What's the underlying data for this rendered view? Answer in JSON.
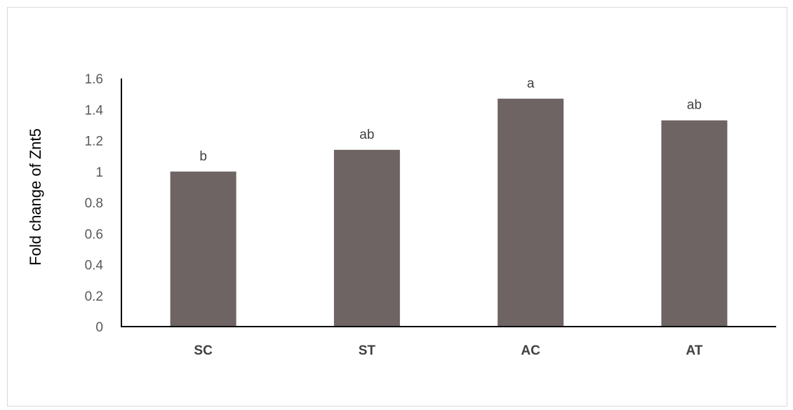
{
  "chart_data": {
    "type": "bar",
    "title": "",
    "xlabel": "",
    "ylabel": "Fold change of Znt5",
    "categories": [
      "SC",
      "ST",
      "AC",
      "AT"
    ],
    "values": [
      1.0,
      1.14,
      1.47,
      1.33
    ],
    "bar_labels": [
      "b",
      "ab",
      "a",
      "ab"
    ],
    "ylim": [
      0,
      1.6
    ],
    "yticks": [
      0,
      0.2,
      0.4,
      0.6,
      0.8,
      1,
      1.2,
      1.4,
      1.6
    ],
    "ytick_labels": [
      "0",
      "0.2",
      "0.4",
      "0.6",
      "0.8",
      "1",
      "1.2",
      "1.4",
      "1.6"
    ],
    "bar_color": "#6e6464",
    "grid": false,
    "legend": "none"
  }
}
